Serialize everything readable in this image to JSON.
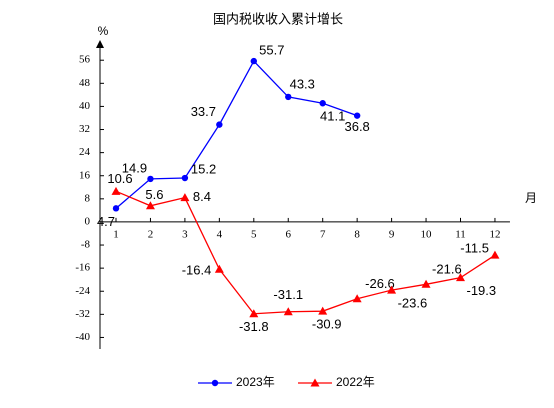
{
  "chart_data": {
    "type": "line",
    "title": "国内税收收入累计增长",
    "y_unit": "%",
    "x_label": "月",
    "categories": [
      "1",
      "2",
      "3",
      "4",
      "5",
      "6",
      "7",
      "8",
      "9",
      "10",
      "11",
      "12"
    ],
    "series": [
      {
        "name": "2023年",
        "color": "#0000ff",
        "marker": "circle",
        "values": [
          4.7,
          14.9,
          15.2,
          33.7,
          55.7,
          43.3,
          41.1,
          36.8,
          null,
          null,
          null,
          null
        ]
      },
      {
        "name": "2022年",
        "color": "#ff0000",
        "marker": "triangle",
        "values": [
          10.6,
          5.6,
          8.4,
          -16.4,
          -31.8,
          -31.1,
          -30.9,
          -26.6,
          -23.6,
          -21.6,
          -19.3,
          -11.5
        ]
      }
    ],
    "ylim": [
      -44,
      63
    ],
    "yticks": [
      56,
      48,
      40,
      32,
      24,
      16,
      8,
      0,
      -8,
      -16,
      -24,
      -32,
      -40
    ],
    "legend": "bottom",
    "grid": false
  }
}
